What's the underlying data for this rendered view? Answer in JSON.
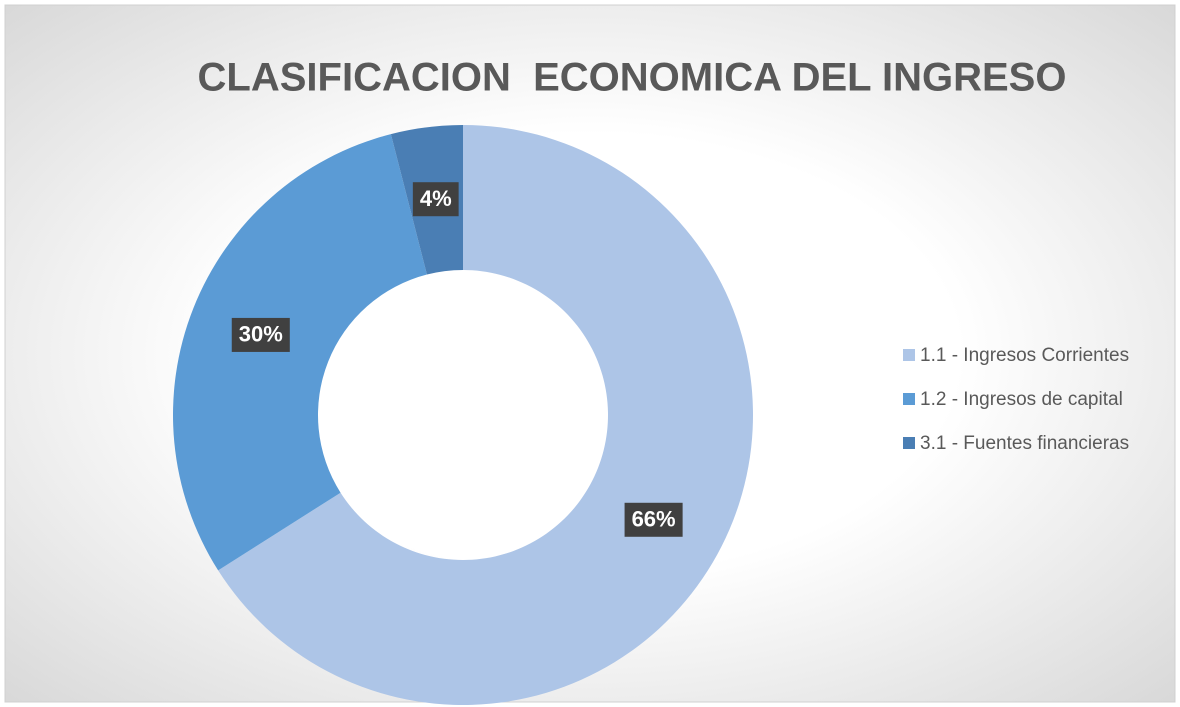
{
  "chart_data": {
    "type": "donut",
    "title": "CLASIFICACION  ECONOMICA DEL INGRESO",
    "categories": [
      "1.1 - Ingresos Corrientes",
      "1.2 - Ingresos de capital",
      "3.1 - Fuentes financieras"
    ],
    "values": [
      66,
      30,
      4
    ],
    "value_labels": [
      "66%",
      "30%",
      "4%"
    ],
    "colors": [
      "#adc5e7",
      "#5b9bd5",
      "#4a7eb4"
    ],
    "legend": "right"
  }
}
